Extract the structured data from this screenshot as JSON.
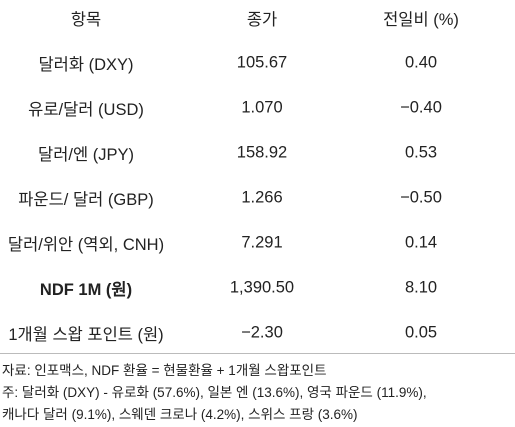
{
  "table": {
    "header": [
      "항목",
      "종가",
      "전일비 (%)"
    ],
    "rows": [
      [
        "달러화 (DXY)",
        "105.67",
        "0.40"
      ],
      [
        "유로/달러 (USD)",
        "1.070",
        "−0.40"
      ],
      [
        "달러/엔 (JPY)",
        "158.92",
        "0.53"
      ],
      [
        "파운드/ 달러 (GBP)",
        "1.266",
        "−0.50"
      ],
      [
        "달러/위안 (역외, CNH)",
        "7.291",
        "0.14"
      ],
      [
        "NDF 1M (원)",
        "1,390.50",
        "8.10"
      ],
      [
        "1개월 스왑 포인트 (원)",
        "−2.30",
        "0.05"
      ]
    ],
    "notes": [
      "자료: 인포맥스, NDF 환율 = 현물환율 + 1개월 스왑포인트",
      "주: 달러화 (DXY) - 유로화 (57.6%), 일본 엔 (13.6%), 영국 파운드 (11.9%),",
      "캐나다 달러 (9.1%), 스웨덴 크로나 (4.2%), 스위스 프랑 (3.6%)"
    ]
  }
}
